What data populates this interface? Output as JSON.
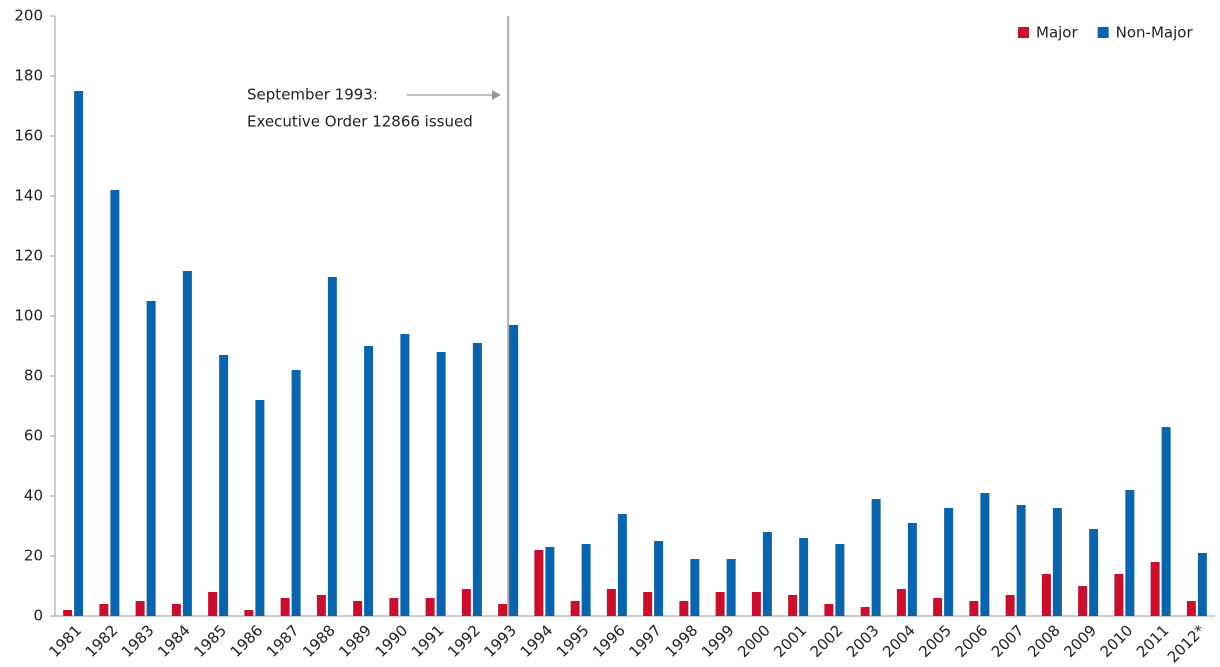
{
  "chart_data": {
    "type": "bar",
    "categories": [
      "1981",
      "1982",
      "1983",
      "1984",
      "1985",
      "1986",
      "1987",
      "1988",
      "1989",
      "1990",
      "1991",
      "1992",
      "1993",
      "1994",
      "1995",
      "1996",
      "1997",
      "1998",
      "1999",
      "2000",
      "2001",
      "2002",
      "2003",
      "2004",
      "2005",
      "2006",
      "2007",
      "2008",
      "2009",
      "2010",
      "2011",
      "2012*"
    ],
    "series": [
      {
        "name": "Major",
        "color": "#c8102e",
        "values": [
          2,
          4,
          5,
          4,
          8,
          2,
          6,
          7,
          5,
          6,
          6,
          9,
          4,
          22,
          5,
          9,
          8,
          5,
          8,
          8,
          7,
          4,
          3,
          9,
          6,
          5,
          7,
          14,
          10,
          14,
          18,
          5
        ]
      },
      {
        "name": "Non-Major",
        "color": "#0a64ad",
        "values": [
          175,
          142,
          105,
          115,
          87,
          72,
          82,
          113,
          90,
          94,
          88,
          91,
          97,
          23,
          24,
          34,
          25,
          19,
          19,
          28,
          26,
          24,
          39,
          31,
          36,
          41,
          37,
          36,
          29,
          42,
          63,
          21
        ]
      }
    ],
    "annotation": [
      "September 1993:",
      "Executive Order 12866 issued"
    ],
    "ylim": [
      0,
      200
    ],
    "yticks": [
      0,
      20,
      40,
      60,
      80,
      100,
      120,
      140,
      160,
      180,
      200
    ],
    "legend": "top-right"
  }
}
